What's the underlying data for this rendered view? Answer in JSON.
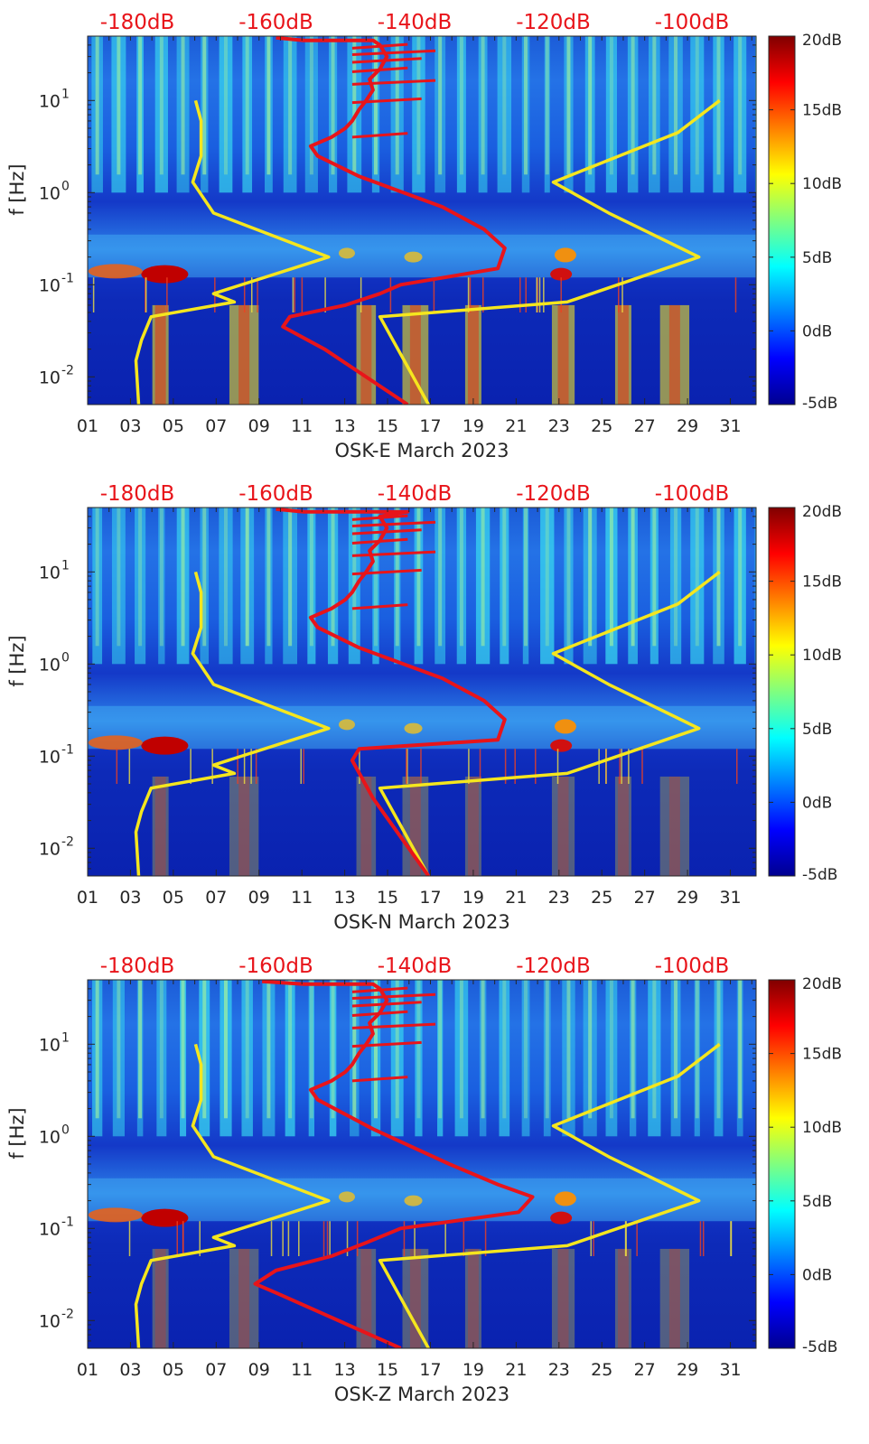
{
  "chart_data": [
    {
      "type": "heatmap",
      "station": "OSK-E",
      "xlabel": "OSK-E March 2023",
      "ylabel": "f [Hz]",
      "x_ticks": [
        "01",
        "03",
        "05",
        "07",
        "09",
        "11",
        "13",
        "15",
        "17",
        "19",
        "21",
        "23",
        "25",
        "27",
        "29",
        "31"
      ],
      "x_tick_days": [
        1,
        3,
        5,
        7,
        9,
        11,
        13,
        15,
        17,
        19,
        21,
        23,
        25,
        27,
        29,
        31
      ],
      "xlim": [
        1,
        32.2
      ],
      "y_scale": "log",
      "ylim": [
        0.005,
        50
      ],
      "y_ticks": [
        {
          "mant": "10",
          "exp": "-2",
          "value": 0.01
        },
        {
          "mant": "10",
          "exp": "-1",
          "value": 0.1
        },
        {
          "mant": "10",
          "exp": "0",
          "value": 1
        },
        {
          "mant": "10",
          "exp": "1",
          "value": 10
        }
      ],
      "top_axis_labels": [
        "-180dB",
        "-160dB",
        "-140dB",
        "-120dB",
        "-100dB"
      ],
      "top_axis_db": [
        -180,
        -160,
        -140,
        -120,
        -100
      ],
      "colorbar": {
        "labels": [
          "20dB",
          "15dB",
          "10dB",
          "5dB",
          "0dB",
          "-5dB"
        ],
        "range": [
          -5,
          20
        ],
        "colormap": "jet"
      },
      "series": [
        {
          "color": "#f5e61e",
          "axis": "top-dB",
          "points": [
            [
              -179.8,
              0.005
            ],
            [
              -180.2,
              0.015
            ],
            [
              -179.4,
              0.025
            ],
            [
              -178,
              0.045
            ],
            [
              -166,
              0.065
            ],
            [
              -169,
              0.08
            ],
            [
              -152.4,
              0.2
            ],
            [
              -169,
              0.6
            ],
            [
              -172,
              1.3
            ],
            [
              -170.8,
              2.5
            ],
            [
              -170.8,
              6
            ],
            [
              -171.6,
              10
            ]
          ]
        },
        {
          "color": "#f5e61e",
          "axis": "top-dB",
          "points": [
            [
              -138,
              0.005
            ],
            [
              -145,
              0.045
            ],
            [
              -118,
              0.065
            ],
            [
              -99,
              0.2
            ],
            [
              -112,
              0.6
            ],
            [
              -120,
              1.3
            ],
            [
              -102,
              4.5
            ],
            [
              -96,
              10
            ]
          ]
        },
        {
          "color": "#e8141a",
          "axis": "top-dB",
          "points": [
            [
              -141,
              0.005
            ],
            [
              -153,
              0.02
            ],
            [
              -159,
              0.035
            ],
            [
              -158,
              0.045
            ],
            [
              -150,
              0.06
            ],
            [
              -145,
              0.08
            ],
            [
              -142,
              0.1
            ],
            [
              -128,
              0.15
            ],
            [
              -127,
              0.25
            ],
            [
              -130,
              0.4
            ],
            [
              -136,
              0.7
            ],
            [
              -148,
              1.5
            ],
            [
              -154,
              2.5
            ],
            [
              -155,
              3.2
            ],
            [
              -152,
              4
            ],
            [
              -150,
              5
            ],
            [
              -149,
              6
            ],
            [
              -148,
              8
            ],
            [
              -147,
              10
            ],
            [
              -146,
              13
            ],
            [
              -146.5,
              17
            ],
            [
              -145,
              22
            ],
            [
              -144,
              30
            ],
            [
              -145,
              40
            ],
            [
              -146,
              45
            ],
            [
              -156,
              45
            ],
            [
              -160,
              48
            ]
          ]
        }
      ]
    },
    {
      "type": "heatmap",
      "station": "OSK-N",
      "xlabel": "OSK-N March 2023",
      "ylabel": "f [Hz]",
      "x_ticks": [
        "01",
        "03",
        "05",
        "07",
        "09",
        "11",
        "13",
        "15",
        "17",
        "19",
        "21",
        "23",
        "25",
        "27",
        "29",
        "31"
      ],
      "x_tick_days": [
        1,
        3,
        5,
        7,
        9,
        11,
        13,
        15,
        17,
        19,
        21,
        23,
        25,
        27,
        29,
        31
      ],
      "xlim": [
        1,
        32.2
      ],
      "y_scale": "log",
      "ylim": [
        0.005,
        50
      ],
      "y_ticks": [
        {
          "mant": "10",
          "exp": "-2",
          "value": 0.01
        },
        {
          "mant": "10",
          "exp": "-1",
          "value": 0.1
        },
        {
          "mant": "10",
          "exp": "0",
          "value": 1
        },
        {
          "mant": "10",
          "exp": "1",
          "value": 10
        }
      ],
      "top_axis_labels": [
        "-180dB",
        "-160dB",
        "-140dB",
        "-120dB",
        "-100dB"
      ],
      "top_axis_db": [
        -180,
        -160,
        -140,
        -120,
        -100
      ],
      "colorbar": {
        "labels": [
          "20dB",
          "15dB",
          "10dB",
          "5dB",
          "0dB",
          "-5dB"
        ],
        "range": [
          -5,
          20
        ],
        "colormap": "jet"
      },
      "series": [
        {
          "color": "#f5e61e",
          "axis": "top-dB",
          "points": [
            [
              -179.8,
              0.005
            ],
            [
              -180.2,
              0.015
            ],
            [
              -179.4,
              0.025
            ],
            [
              -178,
              0.045
            ],
            [
              -166,
              0.065
            ],
            [
              -169,
              0.08
            ],
            [
              -152.4,
              0.2
            ],
            [
              -169,
              0.6
            ],
            [
              -172,
              1.3
            ],
            [
              -170.8,
              2.5
            ],
            [
              -170.8,
              6
            ],
            [
              -171.6,
              10
            ]
          ]
        },
        {
          "color": "#f5e61e",
          "axis": "top-dB",
          "points": [
            [
              -138,
              0.005
            ],
            [
              -145,
              0.045
            ],
            [
              -118,
              0.065
            ],
            [
              -99,
              0.2
            ],
            [
              -112,
              0.6
            ],
            [
              -120,
              1.3
            ],
            [
              -102,
              4.5
            ],
            [
              -96,
              10
            ]
          ]
        },
        {
          "color": "#e8141a",
          "axis": "top-dB",
          "points": [
            [
              -138,
              0.005
            ],
            [
              -146,
              0.035
            ],
            [
              -149,
              0.09
            ],
            [
              -148,
              0.12
            ],
            [
              -128,
              0.15
            ],
            [
              -127,
              0.25
            ],
            [
              -130,
              0.4
            ],
            [
              -136,
              0.7
            ],
            [
              -148,
              1.5
            ],
            [
              -154,
              2.5
            ],
            [
              -155,
              3.2
            ],
            [
              -152,
              4
            ],
            [
              -150,
              5
            ],
            [
              -149,
              6
            ],
            [
              -148,
              8
            ],
            [
              -147,
              10
            ],
            [
              -146,
              13
            ],
            [
              -146.5,
              17
            ],
            [
              -145,
              22
            ],
            [
              -144,
              30
            ],
            [
              -145,
              40
            ],
            [
              -141,
              45
            ],
            [
              -156,
              45
            ],
            [
              -160,
              48
            ]
          ]
        }
      ]
    },
    {
      "type": "heatmap",
      "station": "OSK-Z",
      "xlabel": "OSK-Z March 2023",
      "ylabel": "f [Hz]",
      "x_ticks": [
        "01",
        "03",
        "05",
        "07",
        "09",
        "11",
        "13",
        "15",
        "17",
        "19",
        "21",
        "23",
        "25",
        "27",
        "29",
        "31"
      ],
      "x_tick_days": [
        1,
        3,
        5,
        7,
        9,
        11,
        13,
        15,
        17,
        19,
        21,
        23,
        25,
        27,
        29,
        31
      ],
      "xlim": [
        1,
        32.2
      ],
      "y_scale": "log",
      "ylim": [
        0.005,
        50
      ],
      "y_ticks": [
        {
          "mant": "10",
          "exp": "-2",
          "value": 0.01
        },
        {
          "mant": "10",
          "exp": "-1",
          "value": 0.1
        },
        {
          "mant": "10",
          "exp": "0",
          "value": 1
        },
        {
          "mant": "10",
          "exp": "1",
          "value": 10
        }
      ],
      "top_axis_labels": [
        "-180dB",
        "-160dB",
        "-140dB",
        "-120dB",
        "-100dB"
      ],
      "top_axis_db": [
        -180,
        -160,
        -140,
        -120,
        -100
      ],
      "colorbar": {
        "labels": [
          "20dB",
          "15dB",
          "10dB",
          "5dB",
          "0dB",
          "-5dB"
        ],
        "range": [
          -5,
          20
        ],
        "colormap": "jet"
      },
      "series": [
        {
          "color": "#f5e61e",
          "axis": "top-dB",
          "points": [
            [
              -179.8,
              0.005
            ],
            [
              -180.2,
              0.015
            ],
            [
              -179.4,
              0.025
            ],
            [
              -178,
              0.045
            ],
            [
              -166,
              0.065
            ],
            [
              -169,
              0.08
            ],
            [
              -152.4,
              0.2
            ],
            [
              -169,
              0.6
            ],
            [
              -172,
              1.3
            ],
            [
              -170.8,
              2.5
            ],
            [
              -170.8,
              6
            ],
            [
              -171.6,
              10
            ]
          ]
        },
        {
          "color": "#f5e61e",
          "axis": "top-dB",
          "points": [
            [
              -138,
              0.005
            ],
            [
              -145,
              0.045
            ],
            [
              -118,
              0.065
            ],
            [
              -99,
              0.2
            ],
            [
              -112,
              0.6
            ],
            [
              -120,
              1.3
            ],
            [
              -102,
              4.5
            ],
            [
              -96,
              10
            ]
          ]
        },
        {
          "color": "#e8141a",
          "axis": "top-dB",
          "points": [
            [
              -142,
              0.005
            ],
            [
              -160,
              0.02
            ],
            [
              -163,
              0.025
            ],
            [
              -160,
              0.035
            ],
            [
              -152,
              0.05
            ],
            [
              -147,
              0.07
            ],
            [
              -142,
              0.1
            ],
            [
              -125,
              0.15
            ],
            [
              -123,
              0.22
            ],
            [
              -128,
              0.3
            ],
            [
              -135,
              0.5
            ],
            [
              -146,
              1.2
            ],
            [
              -154,
              2.5
            ],
            [
              -155,
              3.2
            ],
            [
              -152,
              4
            ],
            [
              -150,
              5
            ],
            [
              -149,
              6
            ],
            [
              -148,
              8
            ],
            [
              -147,
              10
            ],
            [
              -146,
              13
            ],
            [
              -146.5,
              17
            ],
            [
              -145,
              22
            ],
            [
              -144,
              30
            ],
            [
              -145,
              40
            ],
            [
              -146,
              45
            ],
            [
              -156,
              45
            ],
            [
              -162,
              48
            ]
          ]
        }
      ]
    }
  ]
}
